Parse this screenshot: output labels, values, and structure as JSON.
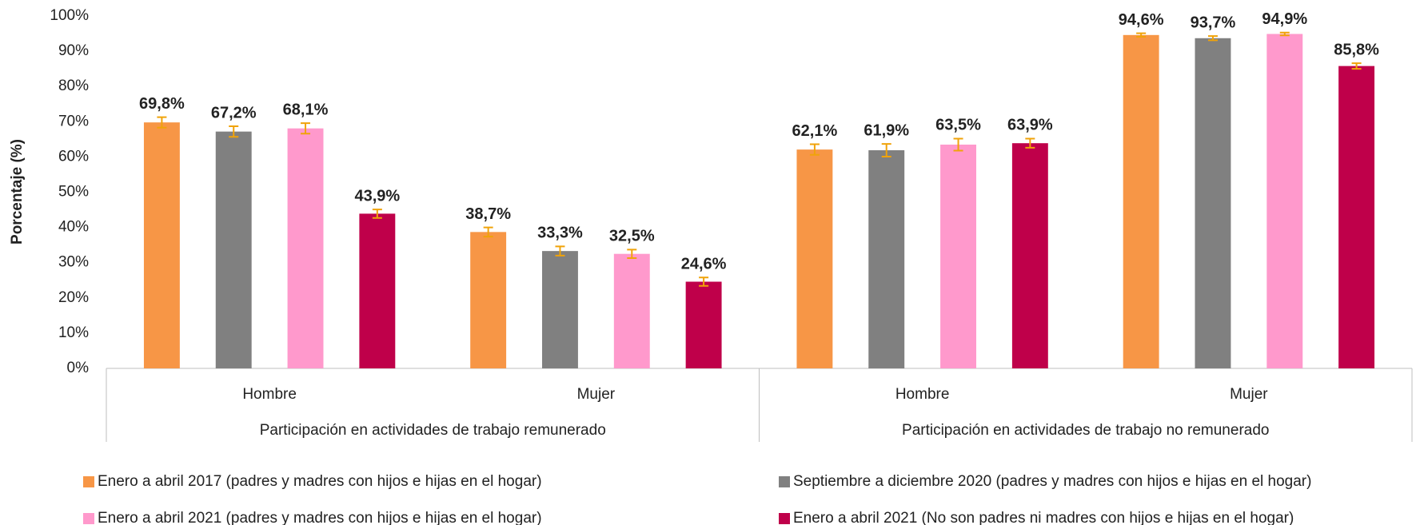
{
  "chart_data": {
    "type": "bar",
    "y_label": "Porcentaje (%)",
    "categories": [
      "Hombre",
      "Mujer",
      "Hombre",
      "Mujer"
    ],
    "category_groups": [
      "Participación en actividades de trabajo remunerado",
      "Participación en actividades de trabajo no remunerado"
    ],
    "ylim": [
      0,
      100
    ],
    "yticks": [
      {
        "value": 0,
        "label": "0%"
      },
      {
        "value": 10,
        "label": "10%"
      },
      {
        "value": 20,
        "label": "20%"
      },
      {
        "value": 30,
        "label": "30%"
      },
      {
        "value": 40,
        "label": "40%"
      },
      {
        "value": 50,
        "label": "50%"
      },
      {
        "value": 60,
        "label": "60%"
      },
      {
        "value": 70,
        "label": "70%"
      },
      {
        "value": 80,
        "label": "80%"
      },
      {
        "value": 90,
        "label": "90%"
      },
      {
        "value": 100,
        "label": "100%"
      }
    ],
    "grid": false,
    "error_color": "#f0a30a",
    "series": [
      {
        "name": "Enero a abril 2017 (padres y madres con hijos e hijas en el hogar)",
        "color": "#f79646",
        "values": [
          69.8,
          38.7,
          62.1,
          94.6
        ],
        "value_labels": [
          "69,8%",
          "38,7%",
          "62,1%",
          "94,6%"
        ],
        "errors": [
          1.5,
          1.3,
          1.5,
          0.5
        ]
      },
      {
        "name": "Septiembre a diciembre 2020 (padres y madres con hijos e hijas en el hogar)",
        "color": "#808080",
        "values": [
          67.2,
          33.3,
          61.9,
          93.7
        ],
        "value_labels": [
          "67,2%",
          "33,3%",
          "61,9%",
          "93,7%"
        ],
        "errors": [
          1.5,
          1.3,
          1.8,
          0.6
        ]
      },
      {
        "name": "Enero a abril 2021 (padres y madres con hijos e hijas en el hogar)",
        "color": "#ff99cc",
        "values": [
          68.1,
          32.5,
          63.5,
          94.9
        ],
        "value_labels": [
          "68,1%",
          "32,5%",
          "63,5%",
          "94,9%"
        ],
        "errors": [
          1.5,
          1.2,
          1.7,
          0.4
        ]
      },
      {
        "name": "Enero a abril 2021 (No son padres ni madres con hijos e hijas en el hogar)",
        "color": "#bf004a",
        "values": [
          43.9,
          24.6,
          63.9,
          85.8
        ],
        "value_labels": [
          "43,9%",
          "24,6%",
          "63,9%",
          "85,8%"
        ],
        "errors": [
          1.2,
          1.2,
          1.3,
          0.8
        ]
      }
    ]
  }
}
